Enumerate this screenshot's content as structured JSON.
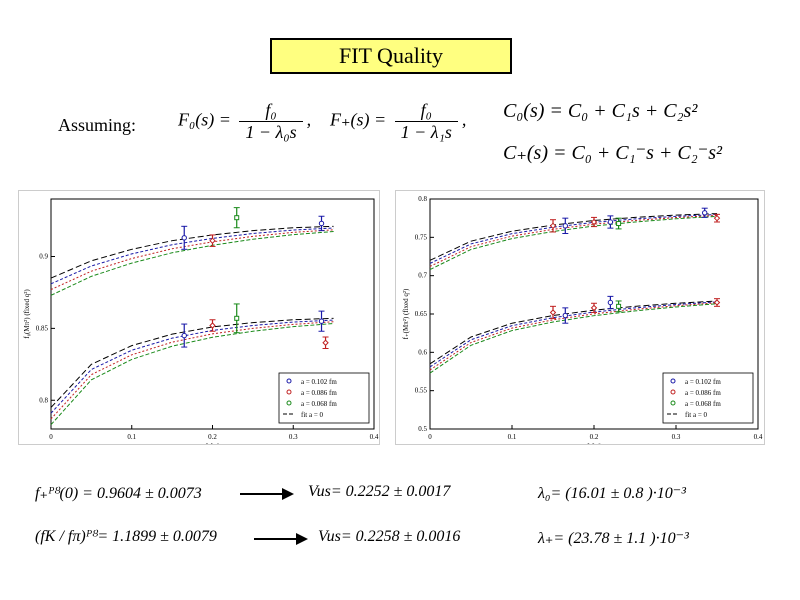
{
  "slide": {
    "title": "FIT Quality",
    "assuming": "Assuming:",
    "formulas": {
      "f0_left": "F₀(s) =",
      "f0_num": "f₀",
      "f0_den": "1 − λ₀s",
      "fplus_left": "F₊(s) =",
      "fplus_num": "f₀",
      "fplus_den": "1 − λ₁s",
      "c0": "C₀(s) = C₀ + C₁s + C₂s²",
      "cplus": "C₊(s) = C₀ + C₁⁻s + C₂⁻s²"
    },
    "results": {
      "r1": "f₊ᴾᴽ(0) = 0.9604 ± 0.0073",
      "v1": "Vus= 0.2252 ± 0.0017",
      "l1": "λ₀= (16.01 ± 0.8 )·10⁻³",
      "r2": "(fK / fπ)ᴾᴽ= 1.1899 ± 0.0079",
      "v2": "Vus= 0.2258 ± 0.0016",
      "l2": "λ₊= (23.78 ± 1.1 )·10⁻³"
    }
  },
  "colors": {
    "a0102": "#1a1aa8",
    "a0086": "#c02020",
    "a0068": "#1a8a1a",
    "fit": "#000000"
  },
  "chart_data": [
    {
      "type": "scatter",
      "title": "",
      "ylabel": "f₀(Mπ²) (fixed q²)",
      "xlabel": "Mπ²",
      "xlim": [
        0,
        0.4
      ],
      "ylim": [
        0.78,
        0.94
      ],
      "xticks": [
        "0",
        "0.1",
        "0.2",
        "0.3",
        "0.4"
      ],
      "yticks": [
        "0.8",
        "0.85",
        "0.9"
      ],
      "legend": [
        "a = 0.102 fm",
        "a = 0.086 fm",
        "a = 0.068 fm",
        "fit a = 0"
      ],
      "series": [
        {
          "name": "a = 0.102 fm",
          "x": [
            0.165,
            0.165,
            0.335,
            0.335
          ],
          "y": [
            0.913,
            0.845,
            0.923,
            0.855
          ],
          "err": [
            0.008,
            0.008,
            0.005,
            0.007
          ]
        },
        {
          "name": "a = 0.086 fm",
          "x": [
            0.2,
            0.2,
            0.34
          ],
          "y": [
            0.911,
            0.852,
            0.84
          ],
          "err": [
            0.004,
            0.004,
            0.004
          ]
        },
        {
          "name": "a = 0.068 fm",
          "x": [
            0.23,
            0.23
          ],
          "y": [
            0.927,
            0.857
          ],
          "err": [
            0.007,
            0.01
          ]
        }
      ],
      "curves_upper": {
        "x": [
          0.0,
          0.05,
          0.1,
          0.15,
          0.2,
          0.25,
          0.3,
          0.35
        ],
        "y": [
          0.885,
          0.897,
          0.905,
          0.911,
          0.915,
          0.918,
          0.92,
          0.921
        ]
      },
      "curves_lower": {
        "x": [
          0.0,
          0.05,
          0.1,
          0.15,
          0.2,
          0.25,
          0.3,
          0.35
        ],
        "y": [
          0.795,
          0.825,
          0.838,
          0.846,
          0.851,
          0.854,
          0.856,
          0.857
        ]
      }
    },
    {
      "type": "scatter",
      "title": "",
      "ylabel": "f₊(Mπ²) (fixed q²)",
      "xlabel": "Mπ²",
      "xlim": [
        0,
        0.4
      ],
      "ylim": [
        0.5,
        0.8
      ],
      "xticks": [
        "0",
        "0.1",
        "0.2",
        "0.3",
        "0.4"
      ],
      "yticks": [
        "0.5",
        "0.55",
        "0.6",
        "0.65",
        "0.7",
        "0.75",
        "0.8"
      ],
      "legend": [
        "a = 0.102 fm",
        "a = 0.086 fm",
        "a = 0.068 fm",
        "fit a = 0"
      ],
      "series": [
        {
          "name": "a = 0.102 fm",
          "x": [
            0.165,
            0.165,
            0.335,
            0.22,
            0.22
          ],
          "y": [
            0.765,
            0.648,
            0.782,
            0.77,
            0.665
          ],
          "err": [
            0.01,
            0.01,
            0.006,
            0.008,
            0.008
          ]
        },
        {
          "name": "a = 0.086 fm",
          "x": [
            0.15,
            0.15,
            0.2,
            0.2,
            0.35,
            0.35
          ],
          "y": [
            0.765,
            0.652,
            0.77,
            0.658,
            0.775,
            0.665
          ],
          "err": [
            0.008,
            0.008,
            0.006,
            0.006,
            0.005,
            0.005
          ]
        },
        {
          "name": "a = 0.068 fm",
          "x": [
            0.23,
            0.23
          ],
          "y": [
            0.768,
            0.66
          ],
          "err": [
            0.007,
            0.007
          ]
        }
      ],
      "curves_upper": {
        "x": [
          0.0,
          0.05,
          0.1,
          0.15,
          0.2,
          0.25,
          0.3,
          0.35
        ],
        "y": [
          0.72,
          0.745,
          0.758,
          0.766,
          0.772,
          0.776,
          0.779,
          0.781
        ]
      },
      "curves_lower": {
        "x": [
          0.0,
          0.05,
          0.1,
          0.15,
          0.2,
          0.25,
          0.3,
          0.35
        ],
        "y": [
          0.585,
          0.62,
          0.638,
          0.648,
          0.655,
          0.66,
          0.664,
          0.667
        ]
      }
    }
  ]
}
